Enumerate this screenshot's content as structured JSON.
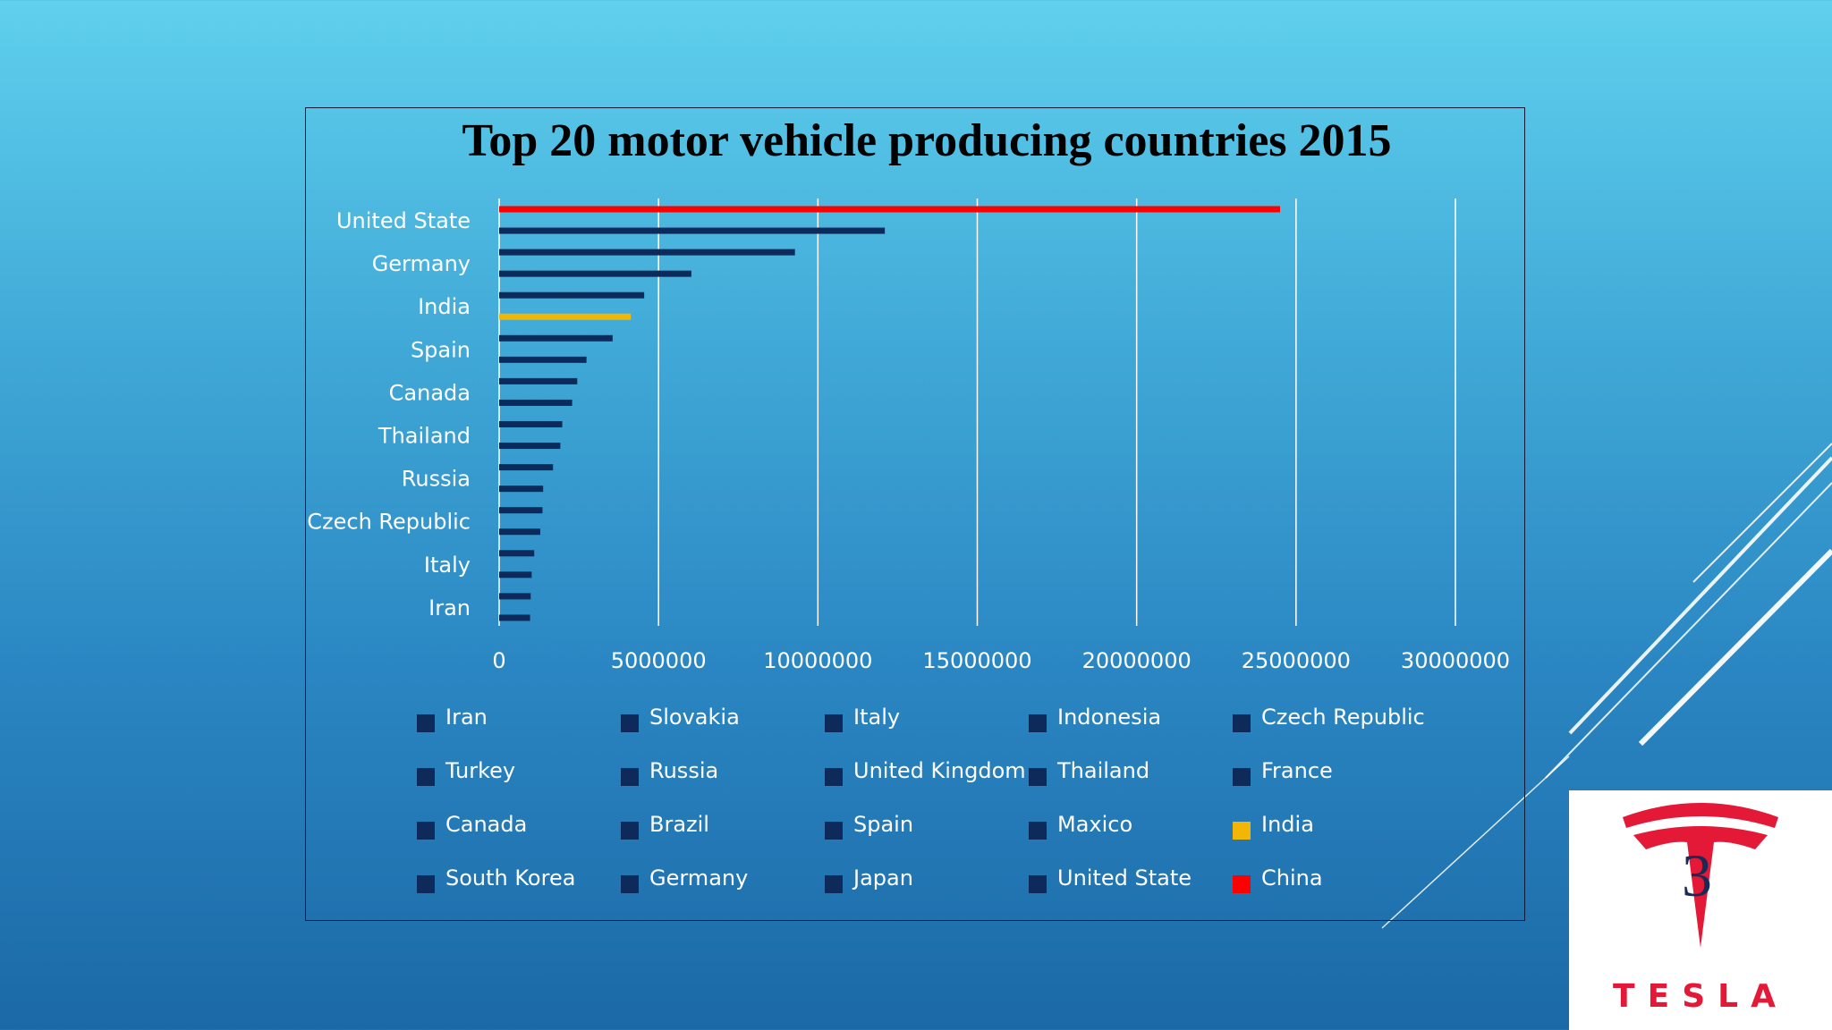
{
  "slide": {
    "number": "3"
  },
  "logo": {
    "wordmark": "TESLA",
    "icon": "tesla-t-logo-icon",
    "color": "#e31937"
  },
  "chart_data": {
    "type": "bar",
    "orientation": "horizontal",
    "title": "Top 20 motor vehicle producing countries 2015",
    "xlabel": "",
    "ylabel": "",
    "xlim": [
      0,
      30000000
    ],
    "xticks": [
      "0",
      "5000000",
      "10000000",
      "15000000",
      "20000000",
      "25000000",
      "30000000"
    ],
    "grid": "vertical",
    "legend_position": "bottom",
    "visible_category_labels": [
      "United State",
      "Germany",
      "India",
      "Spain",
      "Canada",
      "Thailand",
      "Russia",
      "Czech Republic",
      "Italy",
      "Iran"
    ],
    "bars_top_to_bottom": [
      {
        "value": 24500000,
        "color": "#ff0000"
      },
      {
        "value": 12100000,
        "color": "#0d2a5a"
      },
      {
        "value": 9280000,
        "color": "#0d2a5a"
      },
      {
        "value": 6030000,
        "color": "#0d2a5a"
      },
      {
        "value": 4550000,
        "color": "#0d2a5a"
      },
      {
        "value": 4130000,
        "color": "#f2b705"
      },
      {
        "value": 3560000,
        "color": "#0d2a5a"
      },
      {
        "value": 2740000,
        "color": "#0d2a5a"
      },
      {
        "value": 2450000,
        "color": "#0d2a5a"
      },
      {
        "value": 2290000,
        "color": "#0d2a5a"
      },
      {
        "value": 1980000,
        "color": "#0d2a5a"
      },
      {
        "value": 1920000,
        "color": "#0d2a5a"
      },
      {
        "value": 1690000,
        "color": "#0d2a5a"
      },
      {
        "value": 1380000,
        "color": "#0d2a5a"
      },
      {
        "value": 1360000,
        "color": "#0d2a5a"
      },
      {
        "value": 1290000,
        "color": "#0d2a5a"
      },
      {
        "value": 1100000,
        "color": "#0d2a5a"
      },
      {
        "value": 1020000,
        "color": "#0d2a5a"
      },
      {
        "value": 990000,
        "color": "#0d2a5a"
      },
      {
        "value": 970000,
        "color": "#0d2a5a"
      }
    ],
    "legend": [
      {
        "label": "Iran",
        "color": "#0d2a5a"
      },
      {
        "label": "Slovakia",
        "color": "#0d2a5a"
      },
      {
        "label": "Italy",
        "color": "#0d2a5a"
      },
      {
        "label": "Indonesia",
        "color": "#0d2a5a"
      },
      {
        "label": "Czech Republic",
        "color": "#0d2a5a"
      },
      {
        "label": "Turkey",
        "color": "#0d2a5a"
      },
      {
        "label": "Russia",
        "color": "#0d2a5a"
      },
      {
        "label": "United Kingdom",
        "color": "#0d2a5a"
      },
      {
        "label": "Thailand",
        "color": "#0d2a5a"
      },
      {
        "label": "France",
        "color": "#0d2a5a"
      },
      {
        "label": "Canada",
        "color": "#0d2a5a"
      },
      {
        "label": "Brazil",
        "color": "#0d2a5a"
      },
      {
        "label": "Spain",
        "color": "#0d2a5a"
      },
      {
        "label": "Maxico",
        "color": "#0d2a5a"
      },
      {
        "label": "India",
        "color": "#f2b705"
      },
      {
        "label": "South Korea",
        "color": "#0d2a5a"
      },
      {
        "label": "Germany",
        "color": "#0d2a5a"
      },
      {
        "label": "Japan",
        "color": "#0d2a5a"
      },
      {
        "label": "United State",
        "color": "#0d2a5a"
      },
      {
        "label": "China",
        "color": "#ff0000"
      }
    ]
  }
}
